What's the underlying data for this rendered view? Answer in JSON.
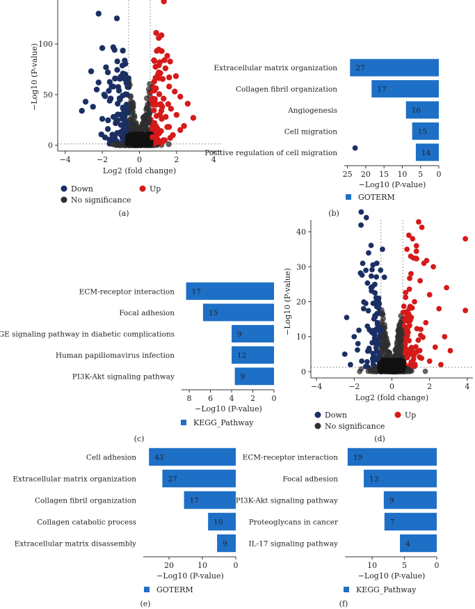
{
  "figure": {
    "colors": {
      "down": "#1b2f63",
      "up": "#d51a1a",
      "nosig": "#2f2f2f",
      "bar": "#1e6fc6",
      "grid": "#777777"
    }
  },
  "chart_data": [
    {
      "panel": "(a)",
      "type": "scatter",
      "title": "",
      "xlabel": "Log2 (fold change)",
      "ylabel": "−Log10 (P-value)",
      "xlim": [
        -4.4,
        4.4
      ],
      "ylim": [
        -3,
        138
      ],
      "xticks": [
        -4,
        -2,
        0,
        2,
        4
      ],
      "yticks": [
        0,
        50,
        100
      ],
      "thresholds": {
        "x": [
          -0.58,
          0.58
        ],
        "y": 1.3
      },
      "legend": {
        "down": "Down",
        "up": "Up",
        "nosig": "No significance"
      },
      "series": [
        {
          "name": "Down",
          "points": [
            [
              -2.2,
              130
            ],
            [
              -2.0,
              96
            ],
            [
              -1.8,
              77
            ],
            [
              -1.7,
              72
            ],
            [
              -2.6,
              73
            ],
            [
              -2.2,
              62
            ],
            [
              -1.5,
              58
            ],
            [
              -2.9,
              43
            ],
            [
              -3.1,
              34
            ],
            [
              -2.5,
              38
            ],
            [
              -1.9,
              50
            ],
            [
              -1.3,
              66
            ],
            [
              -1.1,
              54
            ],
            [
              -0.9,
              49
            ],
            [
              -1.6,
              44
            ],
            [
              -2.3,
              55
            ],
            [
              -0.8,
              35
            ],
            [
              -1.4,
              28
            ],
            [
              -1.0,
              20
            ],
            [
              -0.7,
              14
            ],
            [
              -1.2,
              12
            ],
            [
              -2.0,
              26
            ],
            [
              -1.7,
              16
            ],
            [
              -0.9,
              9
            ],
            [
              -1.5,
              6
            ]
          ]
        },
        {
          "name": "Up",
          "points": [
            [
              0.9,
              111
            ],
            [
              1.2,
              93
            ],
            [
              1.1,
              82
            ],
            [
              1.4,
              76
            ],
            [
              1.0,
              70
            ],
            [
              0.8,
              63
            ],
            [
              1.6,
              58
            ],
            [
              1.9,
              53
            ],
            [
              2.2,
              48
            ],
            [
              2.6,
              41
            ],
            [
              1.3,
              46
            ],
            [
              0.9,
              40
            ],
            [
              1.7,
              36
            ],
            [
              2.0,
              30
            ],
            [
              1.2,
              26
            ],
            [
              0.8,
              22
            ],
            [
              1.5,
              18
            ],
            [
              2.4,
              19
            ],
            [
              1.0,
              12
            ],
            [
              0.7,
              8
            ],
            [
              1.8,
              10
            ],
            [
              2.9,
              27
            ],
            [
              2.2,
              15
            ],
            [
              1.3,
              5
            ],
            [
              0.9,
              3
            ]
          ]
        }
      ]
    },
    {
      "panel": "(b)",
      "type": "bar",
      "orientation": "horizontal-reversed",
      "categories": [
        "Extracellular matrix organization",
        "Collagen fibril organization",
        "Angiogenesis",
        "Cell migration",
        "Positive regulation of cell migration"
      ],
      "values": [
        24.3,
        18.4,
        9.0,
        7.3,
        6.3
      ],
      "data_labels": [
        "27",
        "17",
        "16",
        "15",
        "14"
      ],
      "xlim": [
        0,
        25.5
      ],
      "xticks": [
        25,
        20,
        15,
        10,
        5,
        0
      ],
      "xlabel": "−Log10 (P-value)",
      "legend": [
        "GOTERM"
      ]
    },
    {
      "panel": "(c)",
      "type": "bar",
      "orientation": "horizontal-reversed",
      "categories": [
        "ECM-receptor interaction",
        "Focal adhesion",
        "AGE-RAGE signaling pathway in diabetic complications",
        "Human papillomavirus infection",
        "PI3K-Akt signaling pathway"
      ],
      "values": [
        8.3,
        6.7,
        4.0,
        4.0,
        3.7
      ],
      "data_labels": [
        "17",
        "15",
        "9",
        "12",
        "9"
      ],
      "xlim": [
        0,
        8.6
      ],
      "xticks": [
        8,
        6,
        4,
        2,
        0
      ],
      "xlabel": "−Log10 (P-value)",
      "legend": [
        "KEGG_Pathway"
      ]
    },
    {
      "panel": "(d)",
      "type": "scatter",
      "title": "",
      "xlabel": "Log2 (fold change)",
      "ylabel": "−Log10 (P-value)",
      "xlim": [
        -4.3,
        4.3
      ],
      "ylim": [
        -1,
        41
      ],
      "xticks": [
        -4,
        -2,
        0,
        2,
        4
      ],
      "yticks": [
        0,
        10,
        20,
        30,
        40
      ],
      "thresholds": {
        "x": [
          -0.58,
          0.58
        ],
        "y": 1.3
      },
      "legend": {
        "down": "Down",
        "up": "Up",
        "nosig": "No significance"
      },
      "series": [
        {
          "name": "Down",
          "points": [
            [
              -0.5,
              35
            ],
            [
              -0.8,
              31
            ],
            [
              -0.6,
              29
            ],
            [
              -0.4,
              27
            ],
            [
              -2.4,
              15.5
            ],
            [
              -1.1,
              24
            ],
            [
              -0.7,
              21
            ],
            [
              -1.5,
              18
            ],
            [
              -1.3,
              13
            ],
            [
              -2.0,
              10
            ],
            [
              -1.8,
              8
            ],
            [
              -2.5,
              5
            ],
            [
              -0.9,
              16
            ],
            [
              -1.2,
              6
            ],
            [
              -0.6,
              12
            ],
            [
              -1.6,
              3
            ],
            [
              -2.2,
              2
            ],
            [
              -0.8,
              4
            ]
          ]
        },
        {
          "name": "Up",
          "points": [
            [
              0.9,
              39
            ],
            [
              1.1,
              38
            ],
            [
              1.3,
              36
            ],
            [
              1.0,
              33
            ],
            [
              0.8,
              35
            ],
            [
              1.7,
              31
            ],
            [
              2.2,
              30
            ],
            [
              3.9,
              38
            ],
            [
              2.9,
              24
            ],
            [
              3.9,
              17.5
            ],
            [
              1.5,
              26
            ],
            [
              2.0,
              22
            ],
            [
              1.2,
              20
            ],
            [
              2.5,
              18
            ],
            [
              1.8,
              14
            ],
            [
              0.9,
              16
            ],
            [
              2.8,
              10
            ],
            [
              2.3,
              7
            ],
            [
              1.4,
              9
            ],
            [
              3.1,
              6
            ],
            [
              2.0,
              3
            ],
            [
              1.0,
              5
            ],
            [
              2.6,
              2
            ]
          ]
        }
      ]
    },
    {
      "panel": "(e)",
      "type": "bar",
      "orientation": "horizontal-reversed",
      "categories": [
        "Cell adhesion",
        "Extracellular matrix organization",
        "Collagen fibril organization",
        "Collagen catabolic process",
        "Extracellular matrix disassembly"
      ],
      "values": [
        26.0,
        22.0,
        15.5,
        8.3,
        5.6
      ],
      "data_labels": [
        "43",
        "27",
        "17",
        "10",
        "9"
      ],
      "xlim": [
        0,
        27.3
      ],
      "xticks": [
        20,
        10,
        0
      ],
      "xlabel": "−Log10 (P-value)",
      "legend": [
        "GOTERM"
      ]
    },
    {
      "panel": "(f)",
      "type": "bar",
      "orientation": "horizontal-reversed",
      "categories": [
        "ECM-receptor interaction",
        "Focal adhesion",
        "PI3K-Akt signaling pathway",
        "Proteoglycans in cancer",
        "IL-17 signaling pathway"
      ],
      "values": [
        13.8,
        11.3,
        8.2,
        8.1,
        5.7
      ],
      "data_labels": [
        "19",
        "13",
        "9",
        "7",
        "4"
      ],
      "xlim": [
        0,
        14
      ],
      "xticks": [
        10,
        5,
        0
      ],
      "xlabel": "−Log10 (P-value)",
      "legend": [
        "KEGG_Pathway"
      ]
    }
  ]
}
